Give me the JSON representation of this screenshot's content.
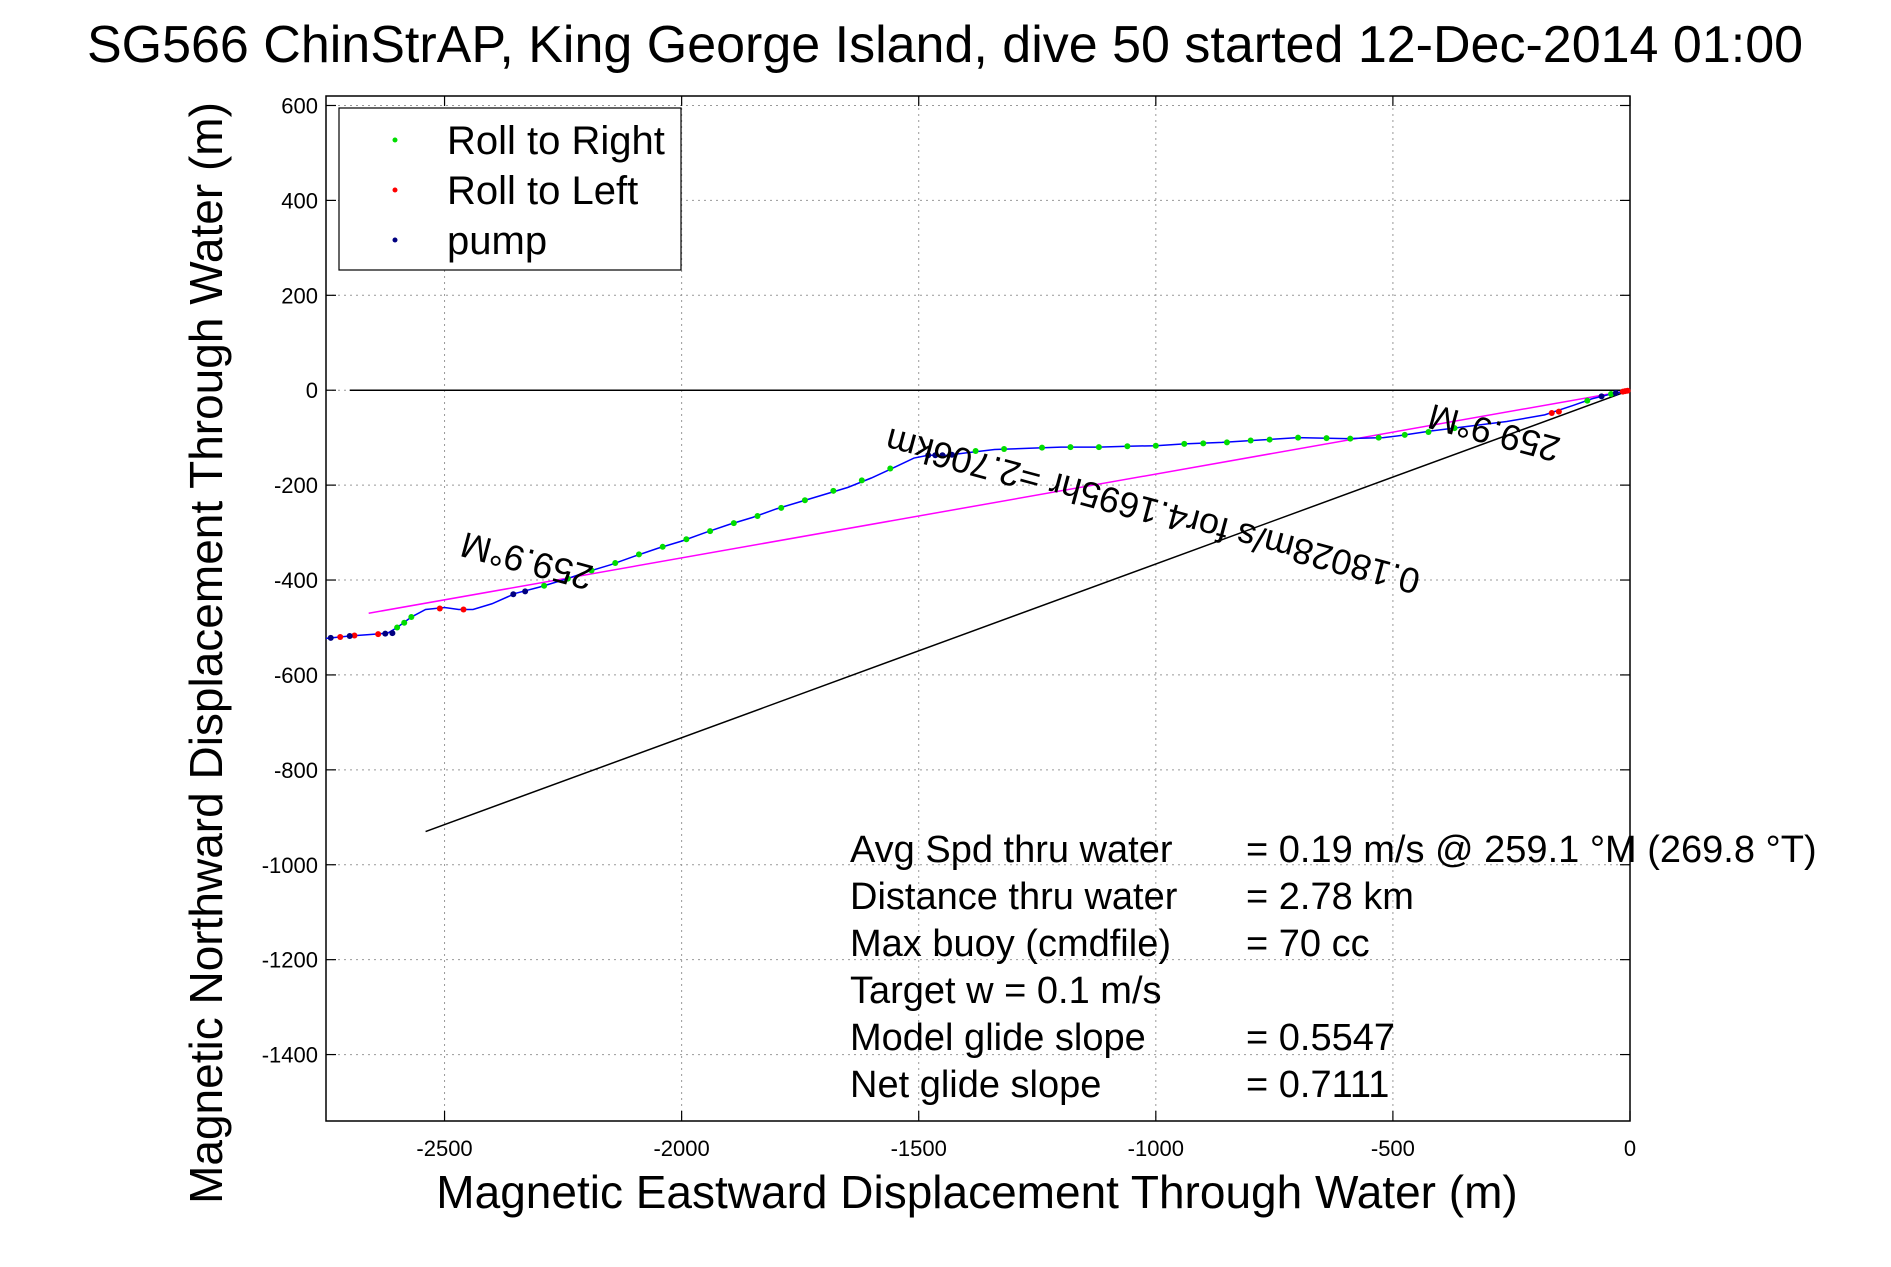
{
  "chart_data": {
    "type": "line",
    "title": "SG566 ChinStrAP, King George Island, dive 50 started 12-Dec-2014 01:00",
    "xlabel": "Magnetic Eastward Displacement Through Water (m)",
    "ylabel": "Magnetic Northward Displacement Through Water (m)",
    "xlim": [
      -2750,
      0
    ],
    "ylim": [
      -1540,
      620
    ],
    "xticks": [
      -2500,
      -2000,
      -1500,
      -1000,
      -500,
      0
    ],
    "yticks": [
      600,
      400,
      200,
      0,
      -200,
      -400,
      -600,
      -800,
      -1000,
      -1200,
      -1400
    ],
    "grid": true,
    "legend": {
      "position": "top-left",
      "entries": [
        {
          "label": "Roll to Right",
          "color": "#00dd00"
        },
        {
          "label": "Roll to Left",
          "color": "#ff0000"
        },
        {
          "label": "pump",
          "color": "#000080"
        }
      ]
    },
    "track": {
      "color": "#0000ff",
      "points": [
        [
          0,
          0
        ],
        [
          -40,
          -8
        ],
        [
          -80,
          -18
        ],
        [
          -120,
          -32
        ],
        [
          -180,
          -52
        ],
        [
          -260,
          -66
        ],
        [
          -340,
          -76
        ],
        [
          -420,
          -86
        ],
        [
          -480,
          -95
        ],
        [
          -520,
          -100
        ],
        [
          -600,
          -102
        ],
        [
          -700,
          -100
        ],
        [
          -780,
          -105
        ],
        [
          -860,
          -110
        ],
        [
          -940,
          -113
        ],
        [
          -1000,
          -117
        ],
        [
          -1060,
          -118
        ],
        [
          -1120,
          -120
        ],
        [
          -1200,
          -120
        ],
        [
          -1260,
          -122
        ],
        [
          -1340,
          -125
        ],
        [
          -1400,
          -132
        ],
        [
          -1440,
          -137
        ],
        [
          -1480,
          -137
        ],
        [
          -1510,
          -143
        ],
        [
          -1550,
          -162
        ],
        [
          -1600,
          -185
        ],
        [
          -1650,
          -205
        ],
        [
          -1700,
          -220
        ],
        [
          -1750,
          -235
        ],
        [
          -1800,
          -250
        ],
        [
          -1850,
          -268
        ],
        [
          -1900,
          -283
        ],
        [
          -1950,
          -300
        ],
        [
          -2000,
          -318
        ],
        [
          -2050,
          -333
        ],
        [
          -2100,
          -350
        ],
        [
          -2150,
          -368
        ],
        [
          -2200,
          -383
        ],
        [
          -2250,
          -400
        ],
        [
          -2300,
          -415
        ],
        [
          -2350,
          -428
        ],
        [
          -2400,
          -450
        ],
        [
          -2440,
          -462
        ],
        [
          -2470,
          -462
        ],
        [
          -2500,
          -458
        ],
        [
          -2540,
          -462
        ],
        [
          -2570,
          -478
        ],
        [
          -2600,
          -500
        ],
        [
          -2620,
          -512
        ],
        [
          -2660,
          -515
        ],
        [
          -2700,
          -518
        ],
        [
          -2750,
          -523
        ]
      ]
    },
    "roll_right_points": [
      [
        -40,
        -8
      ],
      [
        -90,
        -22
      ],
      [
        -370,
        -80
      ],
      [
        -425,
        -88
      ],
      [
        -475,
        -94
      ],
      [
        -530,
        -100
      ],
      [
        -590,
        -102
      ],
      [
        -640,
        -101
      ],
      [
        -700,
        -100
      ],
      [
        -760,
        -104
      ],
      [
        -800,
        -106
      ],
      [
        -850,
        -110
      ],
      [
        -900,
        -112
      ],
      [
        -940,
        -113
      ],
      [
        -1000,
        -117
      ],
      [
        -1060,
        -118
      ],
      [
        -1120,
        -120
      ],
      [
        -1180,
        -120
      ],
      [
        -1240,
        -121
      ],
      [
        -1320,
        -124
      ],
      [
        -1380,
        -128
      ],
      [
        -1560,
        -165
      ],
      [
        -1620,
        -190
      ],
      [
        -1680,
        -212
      ],
      [
        -1740,
        -232
      ],
      [
        -1790,
        -248
      ],
      [
        -1840,
        -265
      ],
      [
        -1890,
        -280
      ],
      [
        -1940,
        -297
      ],
      [
        -1990,
        -314
      ],
      [
        -2040,
        -330
      ],
      [
        -2090,
        -346
      ],
      [
        -2140,
        -364
      ],
      [
        -2190,
        -380
      ],
      [
        -2240,
        -397
      ],
      [
        -2290,
        -412
      ],
      [
        -2570,
        -478
      ],
      [
        -2585,
        -490
      ],
      [
        -2600,
        -500
      ]
    ],
    "roll_left_points": [
      [
        -5,
        -1
      ],
      [
        -10,
        -2
      ],
      [
        -15,
        -3
      ],
      [
        -150,
        -45
      ],
      [
        -165,
        -48
      ],
      [
        -2460,
        -462
      ],
      [
        -2510,
        -460
      ],
      [
        -2640,
        -514
      ],
      [
        -2690,
        -517
      ],
      [
        -2720,
        -520
      ]
    ],
    "pump_points": [
      [
        -30,
        -6
      ],
      [
        -60,
        -13
      ],
      [
        -1430,
        -136
      ],
      [
        -1450,
        -137
      ],
      [
        -1465,
        -137
      ],
      [
        -1480,
        -137
      ],
      [
        -2330,
        -424
      ],
      [
        -2355,
        -430
      ],
      [
        -2610,
        -512
      ],
      [
        -2625,
        -513
      ],
      [
        -2700,
        -518
      ],
      [
        -2740,
        -522
      ]
    ],
    "reference_lines": [
      {
        "color": "#000000",
        "points": [
          [
            -2700,
            0
          ],
          [
            0,
            0
          ]
        ]
      },
      {
        "color": "#000000",
        "points": [
          [
            -2540,
            -930
          ],
          [
            0,
            0
          ]
        ]
      },
      {
        "color": "#ff00ff",
        "points": [
          [
            -2660,
            -470
          ],
          [
            0,
            0
          ]
        ]
      }
    ],
    "annotations": [
      {
        "text": "259.9°M",
        "x": -2320,
        "y": -335,
        "rotation": 195
      },
      {
        "text": "259.9°M",
        "x": -280,
        "y": -65,
        "rotation": 195
      },
      {
        "text": "0.18028m/s for4.1695hr =2.706km",
        "x": -1000,
        "y": -230,
        "rotation": 195
      }
    ],
    "stats": [
      {
        "label": "Avg Spd thru water",
        "value": "=  0.19 m/s @ 259.1 °M (269.8 °T)"
      },
      {
        "label": "Distance thru water",
        "value": "=  2.78 km"
      },
      {
        "label": "Max buoy (cmdfile)",
        "value": "= 70 cc"
      },
      {
        "label": "Target w    = 0.1 m/s",
        "value": ""
      },
      {
        "label": "Model glide slope",
        "value": "= 0.5547"
      },
      {
        "label": "Net glide slope",
        "value": "= 0.7111"
      }
    ]
  }
}
